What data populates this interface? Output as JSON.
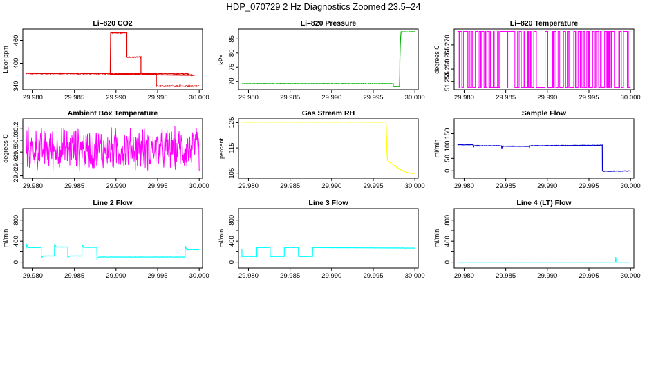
{
  "figure": {
    "title": "HDP_070729  2 Hz Diagnostics Zoomed 23.5–24",
    "xticks": [
      29.98,
      29.985,
      29.99,
      29.995,
      30.0
    ],
    "xtick_labels": [
      "29.980",
      "29.985",
      "29.990",
      "29.995",
      "30.000"
    ]
  },
  "chart_data": [
    {
      "type": "line",
      "title": "Li–820 CO2",
      "ylabel": "Licor ppm",
      "color": "#e00000",
      "xlim": [
        29.9788,
        30.0004
      ],
      "ylim": [
        330,
        490
      ],
      "yticks": [
        340,
        400,
        460
      ],
      "ytick_labels": [
        "340",
        "400",
        "460"
      ],
      "style": "noisy",
      "noise": 1.2,
      "series": [
        [
          29.9792,
          373
        ],
        [
          29.9988,
          372
        ],
        [
          29.9988,
          369
        ],
        [
          29.9993,
          369
        ],
        [
          29.9893,
          372
        ],
        [
          29.98935,
          480
        ],
        [
          29.9913,
          480
        ],
        [
          29.9913,
          416
        ],
        [
          29.993,
          416
        ],
        [
          29.993,
          373
        ],
        [
          29.99485,
          373
        ],
        [
          29.99485,
          340
        ],
        [
          29.99765,
          340
        ],
        [
          29.9977,
          347
        ],
        [
          29.99775,
          340
        ],
        [
          30.0,
          340
        ]
      ]
    },
    {
      "type": "line",
      "title": "Li–820 Pressure",
      "ylabel": "kPa",
      "color": "#00b000",
      "xlim": [
        29.9788,
        30.0004
      ],
      "ylim": [
        67,
        88.5
      ],
      "yticks": [
        70,
        75,
        80,
        85
      ],
      "ytick_labels": [
        "70",
        "75",
        "80",
        "85"
      ],
      "style": "noisy",
      "noise": 0.08,
      "series": [
        [
          29.9792,
          69.2
        ],
        [
          29.9974,
          69.2
        ],
        [
          29.9974,
          68.2
        ],
        [
          29.99815,
          68.2
        ],
        [
          29.99818,
          72
        ],
        [
          29.9982,
          78
        ],
        [
          29.99825,
          83
        ],
        [
          29.9983,
          86
        ],
        [
          29.99835,
          87.5
        ],
        [
          30.0,
          87.5
        ]
      ]
    },
    {
      "type": "line",
      "title": "Li–820 Temperature",
      "ylabel": "degrees C",
      "color": "#ff00ff",
      "xlim": [
        29.9788,
        30.0004
      ],
      "ylim": [
        51.2515,
        51.2765
      ],
      "yticks": [
        51.255,
        51.26,
        51.265,
        51.27
      ],
      "ytick_labels": [
        "51.255",
        "51.260",
        "51.265",
        "51.270"
      ],
      "style": "binary",
      "levels": [
        51.2525,
        51.2755
      ],
      "switch_prob": 0.32
    },
    {
      "type": "line",
      "title": "Ambient Box Temperature",
      "ylabel": "degrees C",
      "color": "#ff00ff",
      "xlim": [
        29.9788,
        30.0004
      ],
      "ylim": [
        29.36,
        30.36
      ],
      "yticks": [
        29.4,
        29.6,
        29.8,
        30.0,
        30.2
      ],
      "ytick_labels": [
        "29.4",
        "29.6",
        "29.8",
        "30.0",
        "30.2"
      ],
      "style": "random",
      "center": 29.85,
      "spread": 0.42
    },
    {
      "type": "line",
      "title": "Gas Stream RH",
      "ylabel": "percent",
      "color": "#ffff00",
      "xlim": [
        29.9788,
        30.0004
      ],
      "ylim": [
        103,
        126.5
      ],
      "yticks": [
        105,
        115,
        125
      ],
      "ytick_labels": [
        "105",
        "115",
        "125"
      ],
      "style": "noisy",
      "noise": 0.05,
      "series": [
        [
          29.9792,
          125.2
        ],
        [
          29.9965,
          125.2
        ],
        [
          29.99655,
          124
        ],
        [
          29.9966,
          118
        ],
        [
          29.99665,
          113
        ],
        [
          29.9967,
          110
        ],
        [
          29.9975,
          108
        ],
        [
          29.9985,
          106
        ],
        [
          29.9993,
          105
        ],
        [
          29.99995,
          104.8
        ]
      ]
    },
    {
      "type": "line",
      "title": "Sample Flow",
      "ylabel": "ml/min",
      "color": "#0000cc",
      "xlim": [
        29.9788,
        30.0004
      ],
      "ylim": [
        -30,
        210
      ],
      "yticks": [
        0,
        50,
        100,
        150
      ],
      "ytick_labels": [
        "0",
        "50",
        "100",
        "150"
      ],
      "style": "noisy",
      "noise": 1.0,
      "series": [
        [
          29.9792,
          105
        ],
        [
          29.9811,
          105
        ],
        [
          29.98112,
          94
        ],
        [
          29.9812,
          101
        ],
        [
          29.9845,
          101
        ],
        [
          29.98452,
          91
        ],
        [
          29.9846,
          99
        ],
        [
          29.9878,
          99
        ],
        [
          29.98782,
          92
        ],
        [
          29.9879,
          101
        ],
        [
          29.9966,
          103
        ],
        [
          29.99662,
          0
        ],
        [
          29.99665,
          -2
        ],
        [
          30.0,
          -1
        ]
      ]
    },
    {
      "type": "line",
      "title": "Line 2 Flow",
      "ylabel": "ml/min",
      "color": "#00ffff",
      "xlim": [
        29.9788,
        30.0004
      ],
      "ylim": [
        -110,
        1020
      ],
      "yticks": [
        0,
        200,
        400,
        600,
        800
      ],
      "ytick_labels": [
        "0",
        "",
        "400",
        "",
        "800"
      ],
      "style": "noisy",
      "noise": 3,
      "series": [
        [
          29.9792,
          260
        ],
        [
          29.97925,
          340
        ],
        [
          29.9794,
          280
        ],
        [
          29.981,
          280
        ],
        [
          29.98102,
          80
        ],
        [
          29.9812,
          120
        ],
        [
          29.9826,
          120
        ],
        [
          29.98262,
          350
        ],
        [
          29.9828,
          290
        ],
        [
          29.9842,
          290
        ],
        [
          29.98422,
          90
        ],
        [
          29.9844,
          120
        ],
        [
          29.9859,
          120
        ],
        [
          29.98592,
          340
        ],
        [
          29.9861,
          285
        ],
        [
          29.9877,
          285
        ],
        [
          29.98772,
          60
        ],
        [
          29.9879,
          100
        ],
        [
          29.9983,
          100
        ],
        [
          29.99832,
          310
        ],
        [
          29.9985,
          240
        ],
        [
          30.0,
          240
        ]
      ]
    },
    {
      "type": "line",
      "title": "Line 3 Flow",
      "ylabel": "ml/min",
      "color": "#00ffff",
      "xlim": [
        29.9788,
        30.0004
      ],
      "ylim": [
        -110,
        1020
      ],
      "yticks": [
        0,
        200,
        400,
        600,
        800
      ],
      "ytick_labels": [
        "0",
        "",
        "400",
        "",
        "800"
      ],
      "style": "noisy",
      "noise": 2,
      "series": [
        [
          29.9792,
          260
        ],
        [
          29.97922,
          110
        ],
        [
          29.981,
          110
        ],
        [
          29.98102,
          280
        ],
        [
          29.9826,
          280
        ],
        [
          29.98262,
          110
        ],
        [
          29.9843,
          110
        ],
        [
          29.98432,
          280
        ],
        [
          29.986,
          280
        ],
        [
          29.98602,
          110
        ],
        [
          29.9877,
          110
        ],
        [
          29.98772,
          280
        ],
        [
          30.0,
          270
        ]
      ]
    },
    {
      "type": "line",
      "title": "Line 4 (LT) Flow",
      "ylabel": "ml/min",
      "color": "#00ffff",
      "xlim": [
        29.9788,
        30.0004
      ],
      "ylim": [
        -110,
        1020
      ],
      "yticks": [
        0,
        200,
        400,
        600,
        800
      ],
      "ytick_labels": [
        "0",
        "",
        "400",
        "",
        "800"
      ],
      "style": "noisy",
      "noise": 1,
      "series": [
        [
          29.9792,
          0
        ],
        [
          29.9982,
          0
        ],
        [
          29.99822,
          100
        ],
        [
          29.99826,
          0
        ],
        [
          30.0,
          0
        ]
      ]
    }
  ]
}
